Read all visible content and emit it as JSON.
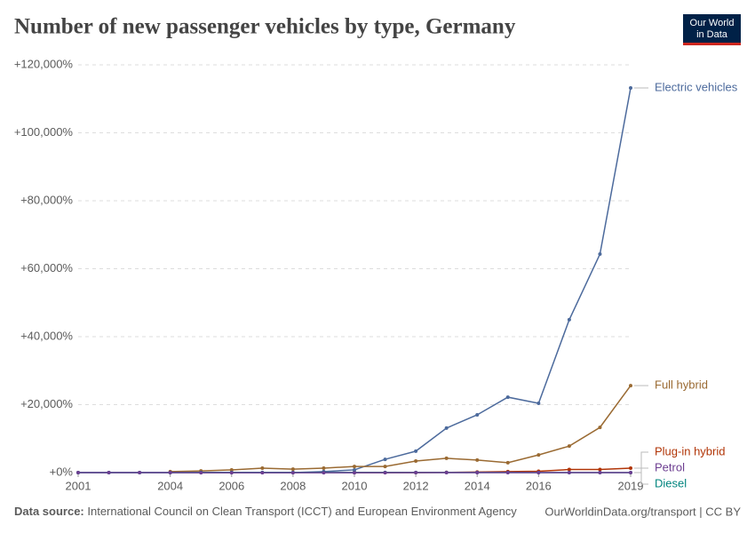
{
  "chart_data": {
    "type": "line",
    "title": "Number of new passenger vehicles by type, Germany",
    "logo": [
      "Our World",
      "in Data"
    ],
    "source_label": "Data source:",
    "source": "International Council on Clean Transport (ICCT) and European Environment Agency",
    "credit": "OurWorldinData.org/transport | CC BY",
    "x": [
      2001,
      2002,
      2003,
      2004,
      2005,
      2006,
      2007,
      2008,
      2009,
      2010,
      2011,
      2012,
      2013,
      2014,
      2015,
      2016,
      2017,
      2018,
      2019
    ],
    "xlim": [
      2001,
      2019
    ],
    "xticks": [
      2001,
      2004,
      2006,
      2008,
      2010,
      2012,
      2014,
      2016,
      2019
    ],
    "ylim": [
      0,
      120000
    ],
    "yticks": [
      {
        "value": 0,
        "label": "+0%"
      },
      {
        "value": 20000,
        "label": "+20,000%"
      },
      {
        "value": 40000,
        "label": "+40,000%"
      },
      {
        "value": 60000,
        "label": "+60,000%"
      },
      {
        "value": 80000,
        "label": "+80,000%"
      },
      {
        "value": 100000,
        "label": "+100,000%"
      },
      {
        "value": 120000,
        "label": "+120,000%"
      }
    ],
    "grid": true,
    "series": [
      {
        "name": "Electric vehicles",
        "color": "#4c6a9c",
        "values": [
          0,
          0,
          0,
          0,
          0,
          0,
          0,
          0,
          300,
          800,
          3900,
          6300,
          13100,
          17000,
          22200,
          20400,
          45000,
          64300,
          113200
        ]
      },
      {
        "name": "Full hybrid",
        "color": "#9a6a32",
        "values": [
          null,
          null,
          null,
          300,
          500,
          800,
          1300,
          1000,
          1300,
          1800,
          1800,
          3400,
          4200,
          3700,
          2900,
          5200,
          7800,
          13300,
          25600
        ]
      },
      {
        "name": "Plug-in hybrid",
        "color": "#b13507",
        "values": [
          null,
          null,
          null,
          null,
          null,
          null,
          null,
          null,
          null,
          0,
          0,
          0,
          50,
          150,
          300,
          400,
          900,
          900,
          1300
        ]
      },
      {
        "name": "Diesel",
        "color": "#00847e",
        "values": [
          0,
          5,
          10,
          15,
          20,
          25,
          30,
          30,
          20,
          20,
          25,
          30,
          30,
          30,
          25,
          15,
          5,
          0,
          -5
        ]
      },
      {
        "name": "Petrol",
        "color": "#6d3e91",
        "values": [
          0,
          -5,
          -10,
          -15,
          -20,
          -25,
          -25,
          -25,
          -20,
          -20,
          -20,
          -15,
          -10,
          -10,
          -5,
          0,
          5,
          10,
          5
        ]
      }
    ]
  }
}
